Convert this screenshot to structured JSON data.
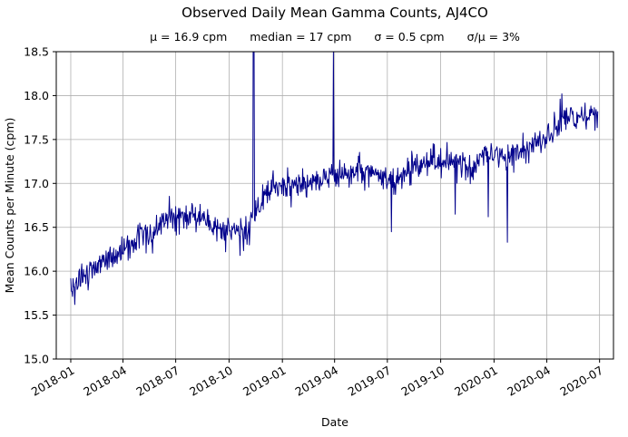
{
  "chart_data": {
    "type": "line",
    "title": "Observed Daily Mean Gamma Counts, AJ4CO",
    "stats": [
      "μ = 16.9 cpm",
      "median = 17 cpm",
      "σ = 0.5 cpm",
      "σ/μ = 3%"
    ],
    "xlabel": "Date",
    "ylabel": "Mean Counts per Minute (cpm)",
    "ylim": [
      15.0,
      18.5
    ],
    "yticks": [
      15.0,
      15.5,
      16.0,
      16.5,
      17.0,
      17.5,
      18.0,
      18.5
    ],
    "xticks": [
      "2018-01",
      "2018-04",
      "2018-07",
      "2018-10",
      "2019-01",
      "2019-04",
      "2019-07",
      "2019-10",
      "2020-01",
      "2020-04",
      "2020-07"
    ],
    "xlim": [
      "2017-12-07",
      "2020-07-25"
    ],
    "x_data_range": [
      "2018-01-01",
      "2020-06-28"
    ],
    "line_color": "#00008b",
    "grid_color": "#b0b0b0",
    "grid": true,
    "noise_sd": 0.08,
    "trend_points": [
      {
        "date": "2018-01-01",
        "value": 15.82
      },
      {
        "date": "2018-02-01",
        "value": 15.98
      },
      {
        "date": "2018-03-01",
        "value": 16.1
      },
      {
        "date": "2018-04-01",
        "value": 16.22
      },
      {
        "date": "2018-05-01",
        "value": 16.4
      },
      {
        "date": "2018-06-01",
        "value": 16.5
      },
      {
        "date": "2018-06-20",
        "value": 16.6
      },
      {
        "date": "2018-07-15",
        "value": 16.62
      },
      {
        "date": "2018-08-15",
        "value": 16.63
      },
      {
        "date": "2018-09-10",
        "value": 16.5
      },
      {
        "date": "2018-10-01",
        "value": 16.48
      },
      {
        "date": "2018-10-20",
        "value": 16.42
      },
      {
        "date": "2018-11-10",
        "value": 16.55
      },
      {
        "date": "2018-11-25",
        "value": 16.8
      },
      {
        "date": "2018-12-15",
        "value": 16.95
      },
      {
        "date": "2019-01-15",
        "value": 17.0
      },
      {
        "date": "2019-02-15",
        "value": 17.0
      },
      {
        "date": "2019-03-15",
        "value": 17.05
      },
      {
        "date": "2019-04-15",
        "value": 17.12
      },
      {
        "date": "2019-05-15",
        "value": 17.15
      },
      {
        "date": "2019-06-15",
        "value": 17.1
      },
      {
        "date": "2019-07-15",
        "value": 16.98
      },
      {
        "date": "2019-08-15",
        "value": 17.2
      },
      {
        "date": "2019-09-15",
        "value": 17.25
      },
      {
        "date": "2019-10-15",
        "value": 17.25
      },
      {
        "date": "2019-11-15",
        "value": 17.15
      },
      {
        "date": "2019-12-15",
        "value": 17.3
      },
      {
        "date": "2020-01-15",
        "value": 17.32
      },
      {
        "date": "2020-02-15",
        "value": 17.4
      },
      {
        "date": "2020-03-15",
        "value": 17.45
      },
      {
        "date": "2020-04-15",
        "value": 17.6
      },
      {
        "date": "2020-05-10",
        "value": 17.78
      },
      {
        "date": "2020-06-01",
        "value": 17.7
      },
      {
        "date": "2020-06-28",
        "value": 17.75
      }
    ],
    "spikes": [
      {
        "date": "2018-01-08",
        "value": 15.62
      },
      {
        "date": "2018-09-25",
        "value": 16.22
      },
      {
        "date": "2018-10-20",
        "value": 16.18
      },
      {
        "date": "2018-11-05",
        "value": 16.3
      },
      {
        "date": "2018-11-12",
        "value": 19.8
      },
      {
        "date": "2018-11-13",
        "value": 18.8
      },
      {
        "date": "2019-03-30",
        "value": 18.5
      },
      {
        "date": "2019-07-08",
        "value": 16.45
      },
      {
        "date": "2019-10-26",
        "value": 16.65
      },
      {
        "date": "2019-12-22",
        "value": 16.62
      },
      {
        "date": "2020-01-24",
        "value": 16.33
      },
      {
        "date": "2020-04-24",
        "value": 17.96
      },
      {
        "date": "2020-04-27",
        "value": 18.02
      }
    ]
  }
}
